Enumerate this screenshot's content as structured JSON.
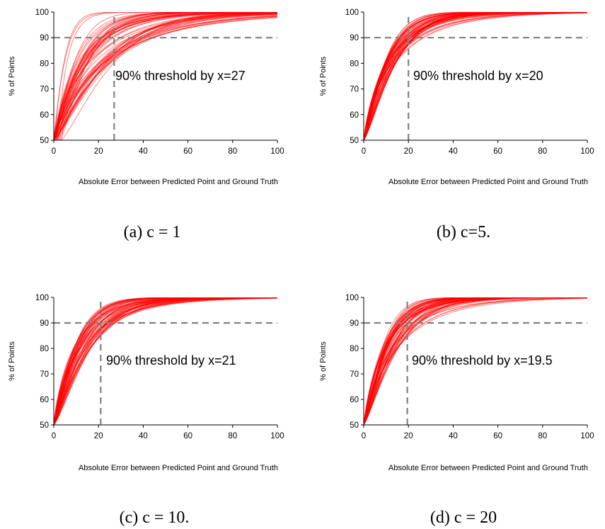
{
  "chart_data": [
    {
      "type": "line",
      "panel": "a",
      "caption": "(a) c = 1",
      "annotation": "90% threshold by x=27",
      "threshold_x": 27,
      "threshold_y": 90,
      "xlabel": "Absolute Error between Predicted Point and Ground Truth",
      "ylabel": "% of Points",
      "xlim": [
        0,
        100
      ],
      "ylim": [
        50,
        100
      ],
      "xticks": [
        "0",
        "20",
        "40",
        "60",
        "80",
        "100"
      ],
      "yticks": [
        "50",
        "60",
        "70",
        "80",
        "90",
        "100"
      ],
      "series_color": "#ff0000",
      "series_count": 60,
      "curve_spread": "wide",
      "typical_curve": {
        "x": [
          0,
          2,
          5,
          10,
          15,
          20,
          27,
          40,
          60,
          80,
          100
        ],
        "y": [
          50,
          63,
          73,
          81,
          85.5,
          88,
          90.5,
          95,
          98.5,
          99.6,
          100
        ]
      }
    },
    {
      "type": "line",
      "panel": "b",
      "caption": "(b) c=5.",
      "annotation": "90% threshold by x=20",
      "threshold_x": 20,
      "threshold_y": 90,
      "xlabel": "Absolute Error between Predicted Point and Ground Truth",
      "ylabel": "% of Points",
      "xlim": [
        0,
        100
      ],
      "ylim": [
        50,
        100
      ],
      "xticks": [
        "0",
        "20",
        "40",
        "60",
        "80",
        "100"
      ],
      "yticks": [
        "50",
        "60",
        "70",
        "80",
        "90",
        "100"
      ],
      "series_color": "#ff0000",
      "series_count": 60,
      "curve_spread": "narrow",
      "typical_curve": {
        "x": [
          0,
          2,
          5,
          10,
          15,
          20,
          30,
          40,
          60,
          80,
          100
        ],
        "y": [
          50,
          68,
          77,
          84.5,
          88,
          90,
          93.5,
          96,
          98.8,
          99.7,
          100
        ]
      }
    },
    {
      "type": "line",
      "panel": "c",
      "caption": "(c) c = 10.",
      "annotation": "90% threshold by x=21",
      "threshold_x": 21,
      "threshold_y": 90,
      "xlabel": "Absolute Error between Predicted Point and Ground Truth",
      "ylabel": "% of Points",
      "xlim": [
        0,
        100
      ],
      "ylim": [
        50,
        100
      ],
      "xticks": [
        "0",
        "20",
        "40",
        "60",
        "80",
        "100"
      ],
      "yticks": [
        "50",
        "60",
        "70",
        "80",
        "90",
        "100"
      ],
      "series_color": "#ff0000",
      "series_count": 60,
      "curve_spread": "medium",
      "typical_curve": {
        "x": [
          0,
          2,
          5,
          10,
          15,
          21,
          30,
          40,
          60,
          80,
          100
        ],
        "y": [
          50,
          67,
          76,
          84,
          87.5,
          90,
          93.5,
          95.8,
          98.7,
          99.7,
          100
        ]
      }
    },
    {
      "type": "line",
      "panel": "d",
      "caption": "(d) c = 20",
      "annotation": "90% threshold by x=19.5",
      "threshold_x": 19.5,
      "threshold_y": 90,
      "xlabel": "Absolute Error between Predicted Point and Ground Truth",
      "ylabel": "% of Points",
      "xlim": [
        0,
        100
      ],
      "ylim": [
        50,
        100
      ],
      "xticks": [
        "0",
        "20",
        "40",
        "60",
        "80",
        "100"
      ],
      "yticks": [
        "50",
        "60",
        "70",
        "80",
        "90",
        "100"
      ],
      "series_color": "#ff0000",
      "series_count": 60,
      "curve_spread": "medium",
      "typical_curve": {
        "x": [
          0,
          2,
          5,
          10,
          15,
          19.5,
          30,
          40,
          60,
          80,
          100
        ],
        "y": [
          50,
          68,
          77,
          84.5,
          88,
          90,
          93.8,
          96,
          98.8,
          99.7,
          100
        ]
      }
    }
  ]
}
